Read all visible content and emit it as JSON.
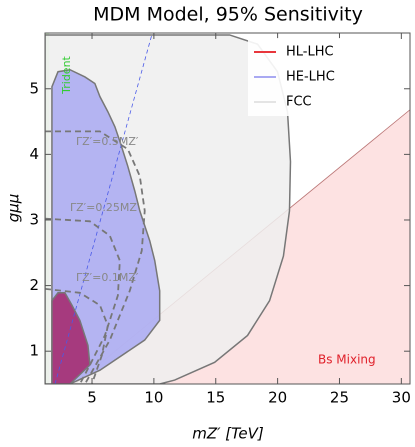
{
  "chart_data": {
    "type": "region",
    "title": "MDM Model, 95% Sensitivity",
    "xlabel": "mZ′ [TeV]",
    "ylabel": "gμμ",
    "xlim": [
      1.2,
      30.7
    ],
    "ylim": [
      0.5,
      5.85
    ],
    "xticks": [
      5,
      10,
      15,
      20,
      25,
      30
    ],
    "yticks": [
      1,
      2,
      3,
      4,
      5
    ],
    "legend": "upper right",
    "series": [
      {
        "name": "FCC",
        "color": "#eeeeee",
        "legend_color": "#e4e4e4",
        "x": [
          1.2,
          1.2,
          16.12,
          18.38,
          19.99,
          20.8,
          21.04,
          20.96,
          20.47,
          19.35,
          17.57,
          14.91,
          11.68,
          10.47
        ],
        "y": [
          0.5,
          5.82,
          5.82,
          5.68,
          5.26,
          4.65,
          3.89,
          3.14,
          2.45,
          1.77,
          1.24,
          0.83,
          0.56,
          0.5
        ]
      },
      {
        "name": "HE-LHC",
        "color": "#a9a9f2",
        "legend_color": "#a9a9f2",
        "x": [
          1.76,
          1.76,
          2.25,
          3.22,
          4.43,
          5.23,
          5.64,
          6.28,
          6.85,
          7.25,
          7.89,
          8.46,
          8.86,
          9.67,
          10.07,
          10.47,
          10.47,
          9.26,
          5.64,
          3.22
        ],
        "y": [
          0.5,
          5.03,
          5.26,
          5.29,
          5.18,
          5.08,
          4.88,
          4.65,
          4.42,
          4.2,
          3.82,
          3.44,
          3.14,
          2.68,
          2.38,
          1.92,
          1.47,
          1.17,
          0.71,
          0.5
        ]
      },
      {
        "name": "HL-LHC",
        "color": "#a3246a",
        "legend_color": "#e8363c",
        "x": [
          1.76,
          1.76,
          2.25,
          2.81,
          3.38,
          4.02,
          4.67,
          4.83,
          3.22
        ],
        "y": [
          0.5,
          1.77,
          1.89,
          1.89,
          1.7,
          1.47,
          1.09,
          0.79,
          0.5
        ]
      }
    ],
    "regions": [
      {
        "label": "Bs Mixing",
        "color": "#fde2e2",
        "text_color": "#e0202a",
        "x": [
          3.62,
          30.7,
          30.7
        ],
        "y": [
          0.5,
          4.68,
          0.5
        ]
      },
      {
        "label": "Trident",
        "color": "#d8f5d0",
        "text_color": "#33cc33",
        "x": [
          1.2,
          1.55,
          1.55,
          1.2
        ],
        "y": [
          0.5,
          0.5,
          5.85,
          5.85
        ]
      }
    ],
    "contours": [
      {
        "label": "ΓZ′=0.5MZ′",
        "x": [
          1.2,
          5.64,
          7.89,
          8.86,
          9.26,
          9.02,
          8.05,
          6.44,
          4.43
        ],
        "y": [
          4.35,
          4.35,
          4.08,
          3.67,
          3.14,
          2.53,
          1.92,
          1.17,
          0.5
        ]
      },
      {
        "label": "ΓZ′=0.25MZ′",
        "x": [
          1.2,
          4.83,
          6.44,
          7.25,
          7.09,
          6.04,
          4.83,
          4.02
        ],
        "y": [
          3.02,
          2.98,
          2.76,
          2.38,
          1.85,
          1.24,
          0.79,
          0.5
        ]
      },
      {
        "label": "ΓZ′=0.1MZ′",
        "x": [
          1.2,
          4.02,
          5.64,
          6.28,
          5.8,
          4.99
        ],
        "y": [
          1.95,
          1.89,
          1.7,
          1.39,
          0.94,
          0.5
        ]
      }
    ],
    "guide": {
      "color": "#4a5ae8",
      "x": [
        2.01,
        9.83
      ],
      "y": [
        0.5,
        5.82
      ]
    }
  }
}
